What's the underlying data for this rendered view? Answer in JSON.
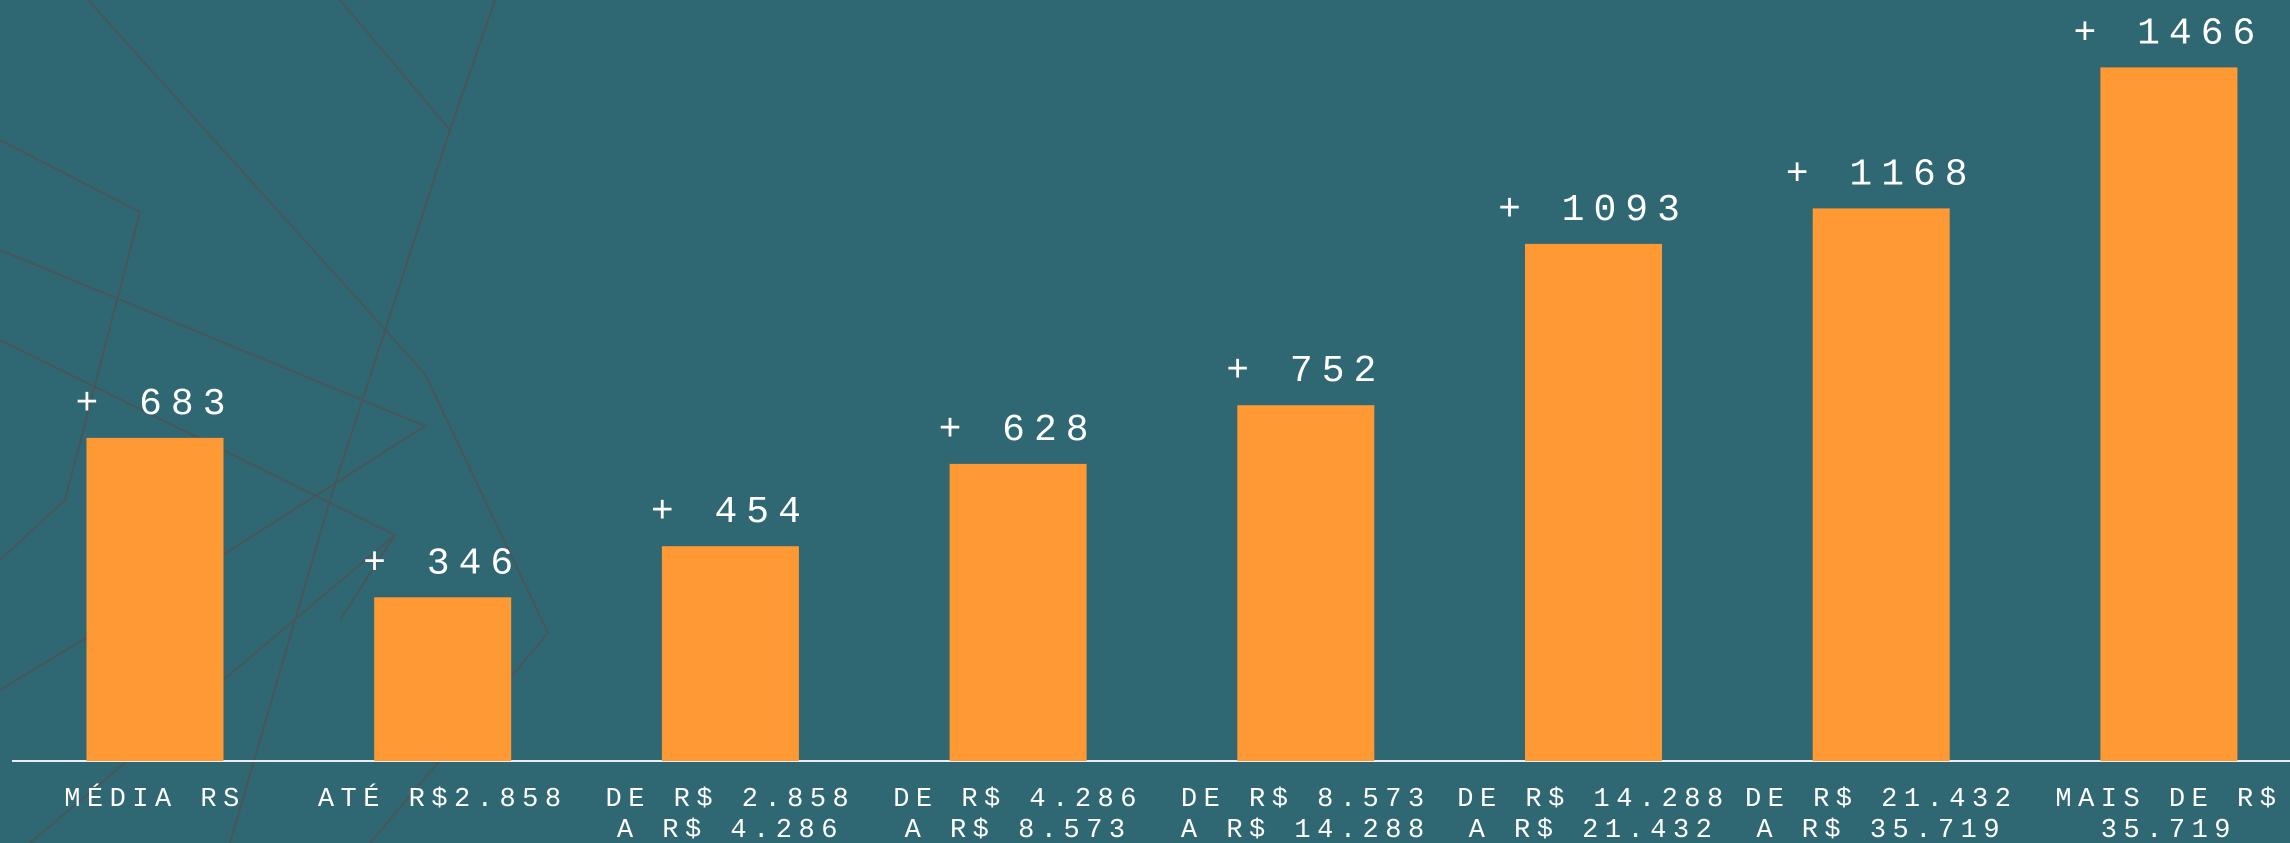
{
  "chart_data": {
    "type": "bar",
    "categories": [
      "MÉDIA RS",
      "ATÉ R$2.858",
      "DE R$ 2.858\nA R$ 4.286",
      "DE R$ 4.286\nA R$ 8.573",
      "DE R$ 8.573\nA R$ 14.288",
      "DE R$ 14.288\nA R$ 21.432",
      "DE R$ 21.432\nA R$ 35.719",
      "MAIS DE R$\n35.719"
    ],
    "values": [
      683,
      346,
      454,
      628,
      752,
      1093,
      1168,
      1466
    ],
    "value_labels": [
      "+ 683",
      "+ 346",
      "+ 454",
      "+ 628",
      "+ 752",
      "+ 1093",
      "+ 1168",
      "+ 1466"
    ],
    "color": "#ff9933",
    "ylim": [
      0,
      1600
    ]
  }
}
